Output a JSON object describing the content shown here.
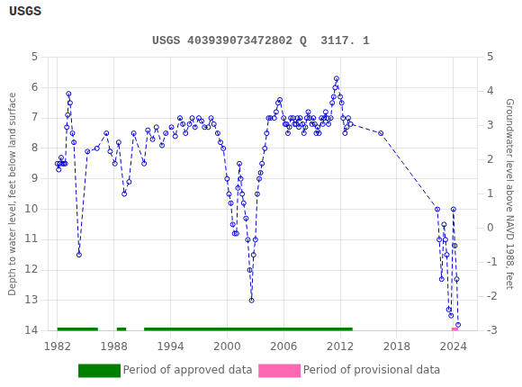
{
  "chart_data": {
    "type": "line",
    "title": "USGS 403939073472802 Q  3117. 1",
    "annotations": [
      "USGS"
    ],
    "ylabel": "Depth to water level, feet below land surface",
    "y2label": "Groundwater level above NAVD 1988, feet",
    "xlim": [
      1981.0,
      2026.5
    ],
    "xticks": [
      1982,
      1988,
      1994,
      2000,
      2006,
      2012,
      2018,
      2024
    ],
    "ylim": [
      14.0,
      5.0
    ],
    "yticks": [
      5.0,
      6.0,
      7.0,
      8.0,
      9.0,
      10.0,
      11.0,
      12.0,
      13.0,
      14.0
    ],
    "y2lim": [
      -3.0,
      5.0
    ],
    "y2ticks": [
      5.0,
      4.0,
      3.0,
      2.0,
      1.0,
      0.0,
      -1.0,
      -2.0,
      -3.0
    ],
    "grid": true,
    "legend": "bottom",
    "x": [
      1982.0,
      1982.15,
      1982.25,
      1982.4,
      1982.55,
      1982.7,
      1982.85,
      1983.0,
      1983.1,
      1983.2,
      1983.35,
      1983.6,
      1983.75,
      1984.3,
      1985.2,
      1986.2,
      1987.2,
      1987.6,
      1988.1,
      1988.5,
      1989.1,
      1989.6,
      1990.1,
      1991.2,
      1991.6,
      1992.1,
      1992.5,
      1993.1,
      1993.5,
      1994.1,
      1994.5,
      1995.0,
      1995.3,
      1995.6,
      1996.0,
      1996.3,
      1996.6,
      1997.0,
      1997.3,
      1997.6,
      1998.0,
      1998.3,
      1998.6,
      1999.0,
      1999.3,
      1999.6,
      2000.0,
      2000.2,
      2000.4,
      2000.6,
      2000.8,
      2001.0,
      2001.15,
      2001.3,
      2001.45,
      2001.6,
      2001.75,
      2002.0,
      2002.2,
      2002.4,
      2002.6,
      2002.8,
      2003.0,
      2003.2,
      2003.4,
      2003.55,
      2003.7,
      2004.0,
      2004.2,
      2004.4,
      2004.6,
      2005.0,
      2005.2,
      2005.4,
      2005.6,
      2006.0,
      2006.15,
      2006.3,
      2006.45,
      2006.6,
      2006.75,
      2007.0,
      2007.15,
      2007.3,
      2007.45,
      2007.6,
      2007.75,
      2008.0,
      2008.15,
      2008.3,
      2008.45,
      2008.6,
      2008.75,
      2009.0,
      2009.15,
      2009.3,
      2009.45,
      2009.6,
      2009.75,
      2010.0,
      2010.15,
      2010.3,
      2010.45,
      2010.6,
      2010.75,
      2011.0,
      2011.15,
      2011.3,
      2011.45,
      2011.6,
      2012.0,
      2012.15,
      2012.3,
      2012.5,
      2012.7,
      2012.85,
      2013.1,
      2016.3,
      2022.3,
      2022.5,
      2022.75,
      2023.0,
      2023.15,
      2023.3,
      2023.5,
      2023.75,
      2024.0,
      2024.15,
      2024.35,
      2024.5
    ],
    "series": [
      {
        "color": "#0000cc",
        "marker": "circle_open",
        "line_style": "dashed",
        "values": [
          8.5,
          8.7,
          8.5,
          8.3,
          8.5,
          8.5,
          8.5,
          7.3,
          6.9,
          6.2,
          6.5,
          7.5,
          7.8,
          11.5,
          8.1,
          8.0,
          7.5,
          8.1,
          8.5,
          7.8,
          9.5,
          9.1,
          7.5,
          8.5,
          7.4,
          7.7,
          7.3,
          7.9,
          7.5,
          7.3,
          7.6,
          7.0,
          7.2,
          7.5,
          7.2,
          7.0,
          7.3,
          7.0,
          7.1,
          7.3,
          7.3,
          7.0,
          7.2,
          7.5,
          7.8,
          8.0,
          9.0,
          9.5,
          9.8,
          10.5,
          10.8,
          10.8,
          9.3,
          8.5,
          9.0,
          9.5,
          9.8,
          10.3,
          11.0,
          12.0,
          13.0,
          11.5,
          11.0,
          9.5,
          9.0,
          8.8,
          8.5,
          8.0,
          7.5,
          7.0,
          7.0,
          7.0,
          6.8,
          6.5,
          6.4,
          7.0,
          7.2,
          7.2,
          7.5,
          7.3,
          7.0,
          7.0,
          7.2,
          7.2,
          7.0,
          7.3,
          7.0,
          7.2,
          7.5,
          7.3,
          7.0,
          6.8,
          7.0,
          7.2,
          7.0,
          7.2,
          7.5,
          7.3,
          7.5,
          7.0,
          7.2,
          7.0,
          6.8,
          7.0,
          7.2,
          7.0,
          6.5,
          6.3,
          6.0,
          5.7,
          6.3,
          6.5,
          7.0,
          7.5,
          7.3,
          7.0,
          7.2,
          7.5,
          10.0,
          11.0,
          12.3,
          10.5,
          11.0,
          11.5,
          13.3,
          13.5,
          10.0,
          11.2,
          12.3,
          13.8
        ]
      },
      {
        "name": "Period of approved data",
        "type": "bar",
        "orientation": "horizontal",
        "color": "#008000",
        "y": 14.0,
        "values": [
          [
            1982.0,
            1986.3
          ],
          [
            1988.3,
            1989.3
          ],
          [
            1991.2,
            2013.3
          ]
        ]
      },
      {
        "name": "Period of provisional data",
        "type": "bar",
        "orientation": "horizontal",
        "color": "#ff69b4",
        "y": 14.0,
        "values": [
          [
            2023.8,
            2024.5
          ]
        ]
      }
    ]
  }
}
